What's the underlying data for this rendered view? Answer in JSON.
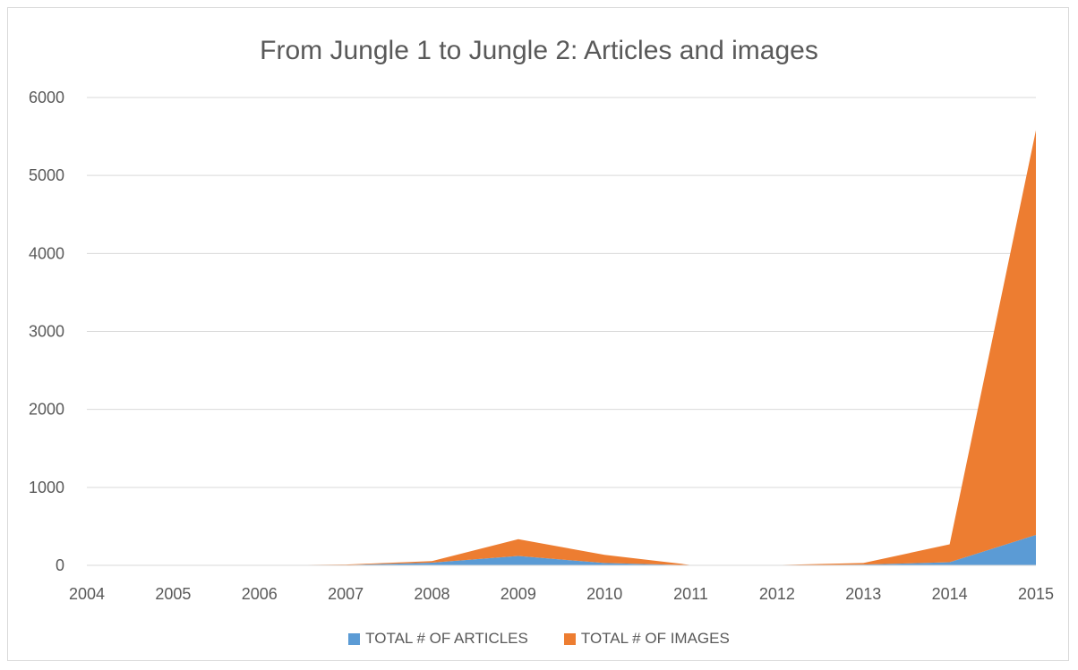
{
  "chart_data": {
    "type": "area",
    "stacked": true,
    "title": "From Jungle 1 to Jungle 2: Articles and images",
    "xlabel": "",
    "ylabel": "",
    "categories": [
      "2004",
      "2005",
      "2006",
      "2007",
      "2008",
      "2009",
      "2010",
      "2011",
      "2012",
      "2013",
      "2014",
      "2015"
    ],
    "ylim": [
      0,
      6000
    ],
    "yticks": [
      0,
      1000,
      2000,
      3000,
      4000,
      5000,
      6000
    ],
    "grid": true,
    "legend_position": "bottom",
    "series": [
      {
        "name": "TOTAL # OF ARTICLES",
        "color": "#5b9bd5",
        "values": [
          2,
          0,
          0,
          5,
          35,
          120,
          30,
          2,
          0,
          10,
          40,
          390
        ]
      },
      {
        "name": "TOTAL # OF IMAGES",
        "color": "#ed7d31",
        "values": [
          3,
          0,
          0,
          5,
          20,
          215,
          105,
          3,
          5,
          20,
          230,
          5190
        ]
      }
    ]
  }
}
